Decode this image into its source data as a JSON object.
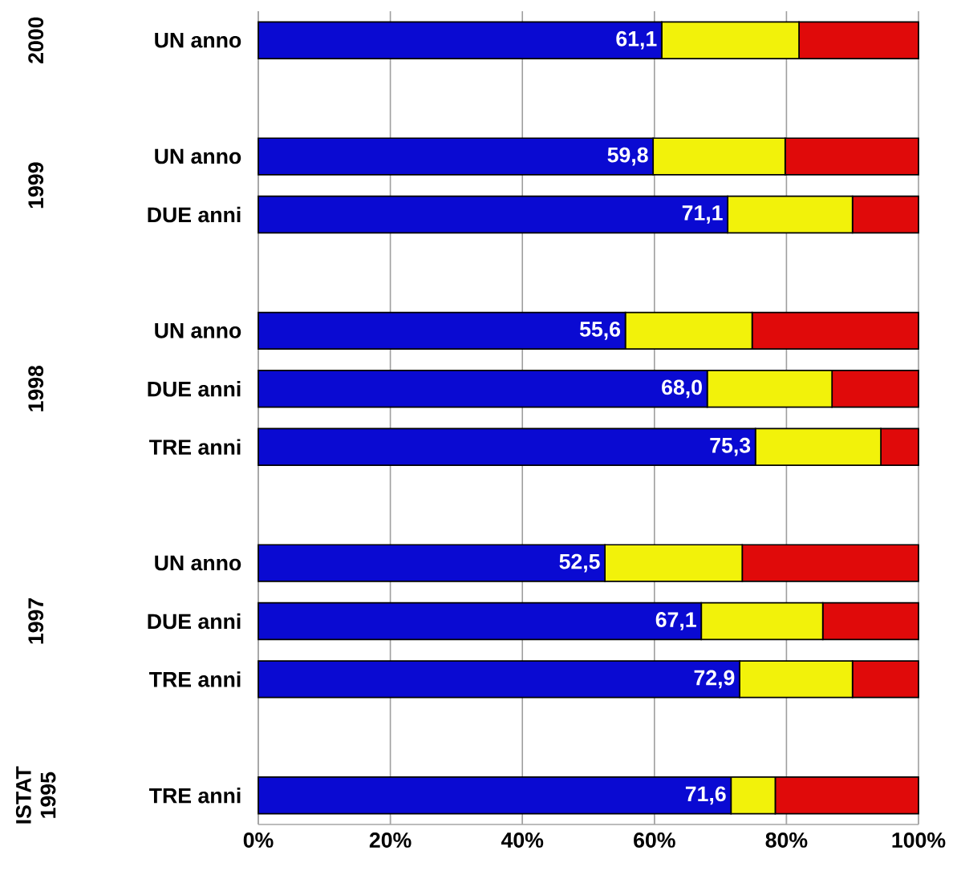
{
  "chart_data": {
    "type": "bar",
    "orientation": "horizontal",
    "stacked": true,
    "categories": [
      "UN anno",
      null,
      "UN anno",
      "DUE anni",
      null,
      "UN anno",
      "DUE anni",
      "TRE anni",
      null,
      "UN anno",
      "DUE anni",
      "TRE anni",
      null,
      "TRE anni"
    ],
    "series": [
      {
        "color": "#0a0ad2",
        "values": [
          61.1,
          null,
          59.8,
          71.1,
          null,
          55.6,
          68.0,
          75.3,
          null,
          52.5,
          67.1,
          72.9,
          null,
          71.6
        ],
        "value_labels": [
          "61,1",
          null,
          "59,8",
          "71,1",
          null,
          "55,6",
          "68,0",
          "75,3",
          null,
          "52,5",
          "67,1",
          "72,9",
          null,
          "71,6"
        ]
      },
      {
        "color": "#f2f20a",
        "values": [
          20.8,
          null,
          20.0,
          18.9,
          null,
          19.2,
          18.9,
          19.0,
          null,
          20.8,
          18.4,
          17.1,
          null,
          6.7
        ]
      },
      {
        "color": "#e00a0a",
        "values": [
          18.1,
          null,
          20.2,
          10.0,
          null,
          25.2,
          13.1,
          5.7,
          null,
          26.7,
          14.5,
          10.0,
          null,
          21.7
        ]
      }
    ],
    "xlim": [
      0,
      100
    ],
    "xticks": [
      {
        "value": 0,
        "label": "0%"
      },
      {
        "value": 20,
        "label": "20%"
      },
      {
        "value": 40,
        "label": "40%"
      },
      {
        "value": 60,
        "label": "60%"
      },
      {
        "value": 80,
        "label": "80%"
      },
      {
        "value": 100,
        "label": "100%"
      }
    ],
    "grid": "x",
    "annotations": [
      "2000",
      "1999",
      "1998",
      "1997",
      "ISTAT 1995"
    ]
  }
}
